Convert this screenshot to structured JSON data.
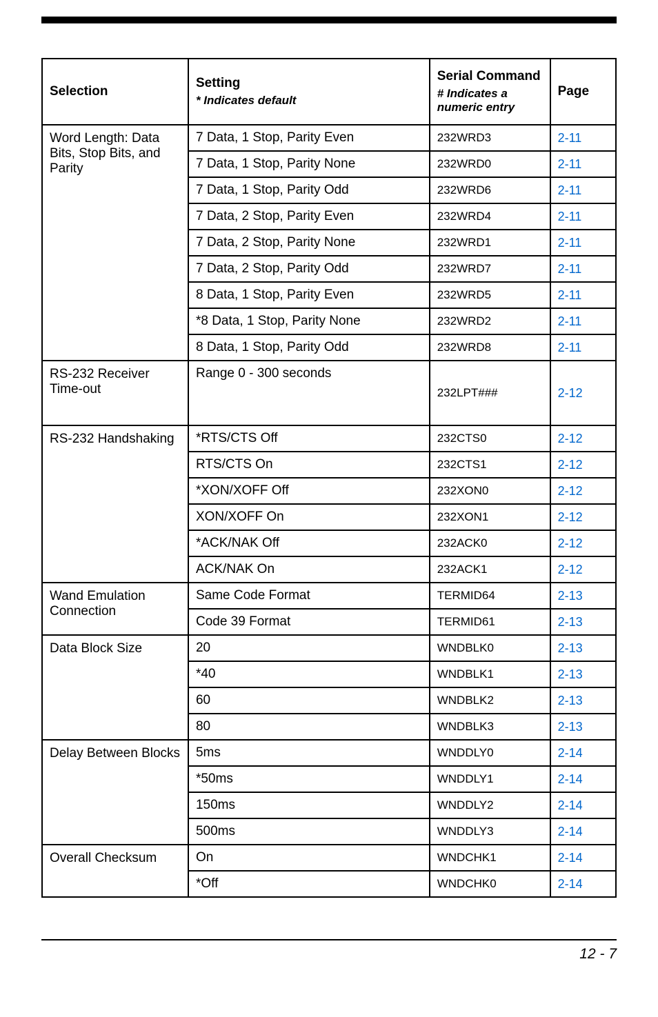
{
  "colors": {
    "text": "#000000",
    "background": "#ffffff",
    "link": "#0066cc",
    "border": "#000000"
  },
  "header": {
    "selection": "Selection",
    "setting": "Setting",
    "setting_sub": "* Indicates default",
    "cmd": "Serial Command",
    "cmd_sub": "# Indicates a numeric entry",
    "page": "Page"
  },
  "groups": [
    {
      "label": "Word Length: Data Bits, Stop Bits, and Parity",
      "rows": [
        {
          "setting": "7 Data, 1 Stop, Parity Even",
          "cmd": "232WRD3",
          "page": "2-11"
        },
        {
          "setting": "7 Data, 1 Stop, Parity None",
          "cmd": "232WRD0",
          "page": "2-11"
        },
        {
          "setting": "7 Data, 1 Stop, Parity Odd",
          "cmd": "232WRD6",
          "page": "2-11"
        },
        {
          "setting": "7 Data, 2 Stop, Parity Even",
          "cmd": "232WRD4",
          "page": "2-11"
        },
        {
          "setting": "7 Data, 2 Stop, Parity None",
          "cmd": "232WRD1",
          "page": "2-11"
        },
        {
          "setting": "7 Data, 2 Stop, Parity Odd",
          "cmd": "232WRD7",
          "page": "2-11"
        },
        {
          "setting": "8 Data, 1 Stop, Parity Even",
          "cmd": "232WRD5",
          "page": "2-11"
        },
        {
          "setting": "*8 Data, 1 Stop, Parity None",
          "cmd": "232WRD2",
          "page": "2-11"
        },
        {
          "setting": "8 Data, 1 Stop, Parity Odd",
          "cmd": "232WRD8",
          "page": "2-11"
        }
      ]
    },
    {
      "label": "RS-232 Receiver Time-out",
      "rows": [
        {
          "setting": "Range 0 -  300 seconds",
          "cmd": "232LPT###",
          "page": "2-12",
          "tall": true
        }
      ]
    },
    {
      "label": "RS-232 Handshaking",
      "rows": [
        {
          "setting": "*RTS/CTS Off",
          "cmd": "232CTS0",
          "page": "2-12"
        },
        {
          "setting": "RTS/CTS On",
          "cmd": "232CTS1",
          "page": "2-12"
        },
        {
          "setting": "*XON/XOFF Off",
          "cmd": "232XON0",
          "page": "2-12"
        },
        {
          "setting": "XON/XOFF On",
          "cmd": "232XON1",
          "page": "2-12"
        },
        {
          "setting": "*ACK/NAK Off",
          "cmd": "232ACK0",
          "page": "2-12"
        },
        {
          "setting": "ACK/NAK On",
          "cmd": "232ACK1",
          "page": "2-12"
        }
      ]
    },
    {
      "label": "Wand Emulation Connection",
      "rows": [
        {
          "setting": "Same Code Format",
          "cmd": "TERMID64",
          "page": "2-13"
        },
        {
          "setting": "Code 39 Format",
          "cmd": "TERMID61",
          "page": "2-13"
        }
      ]
    },
    {
      "label": "Data Block Size",
      "rows": [
        {
          "setting": "20",
          "cmd": "WNDBLK0",
          "page": "2-13"
        },
        {
          "setting": "*40",
          "cmd": "WNDBLK1",
          "page": "2-13"
        },
        {
          "setting": "60",
          "cmd": "WNDBLK2",
          "page": "2-13"
        },
        {
          "setting": "80",
          "cmd": "WNDBLK3",
          "page": "2-13"
        }
      ]
    },
    {
      "label": "Delay Between Blocks",
      "rows": [
        {
          "setting": "5ms",
          "cmd": "WNDDLY0",
          "page": "2-14"
        },
        {
          "setting": "*50ms",
          "cmd": "WNDDLY1",
          "page": "2-14"
        },
        {
          "setting": "150ms",
          "cmd": "WNDDLY2",
          "page": "2-14"
        },
        {
          "setting": "500ms",
          "cmd": "WNDDLY3",
          "page": "2-14"
        }
      ]
    },
    {
      "label": "Overall Checksum",
      "rows": [
        {
          "setting": "On",
          "cmd": "WNDCHK1",
          "page": "2-14"
        },
        {
          "setting": "*Off",
          "cmd": "WNDCHK0",
          "page": "2-14"
        }
      ]
    }
  ],
  "footer": "12 - 7"
}
